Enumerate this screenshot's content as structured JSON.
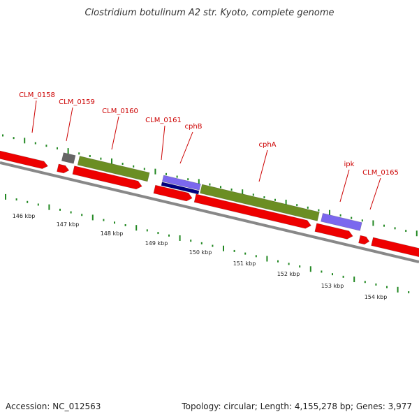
{
  "title": "Clostridium botulinum A2 str. Kyoto, complete genome",
  "footer": {
    "accession": "Accession: NC_012563",
    "summary": "Topology: circular; Length: 4,155,278 bp; Genes: 3,977"
  },
  "colors": {
    "cds": "#ee0000",
    "misc": "#6b8e23",
    "gene_gray": "#666666",
    "navy": "#000080",
    "purple": "#7b68ee",
    "backbone": "#888888",
    "tick": "#228822",
    "label": "#cc0000"
  },
  "gene_labels": [
    {
      "name": "CLM_0158"
    },
    {
      "name": "CLM_0159"
    },
    {
      "name": "CLM_0160"
    },
    {
      "name": "CLM_0161"
    },
    {
      "name": "cphB"
    },
    {
      "name": "cphA"
    },
    {
      "name": "ipk"
    },
    {
      "name": "CLM_0165"
    }
  ],
  "kbp_labels": [
    {
      "text": "146 kbp"
    },
    {
      "text": "147 kbp"
    },
    {
      "text": "148 kbp"
    },
    {
      "text": "149 kbp"
    },
    {
      "text": "150 kbp"
    },
    {
      "text": "151 kbp"
    },
    {
      "text": "152 kbp"
    },
    {
      "text": "153 kbp"
    },
    {
      "text": "154 kbp"
    }
  ]
}
